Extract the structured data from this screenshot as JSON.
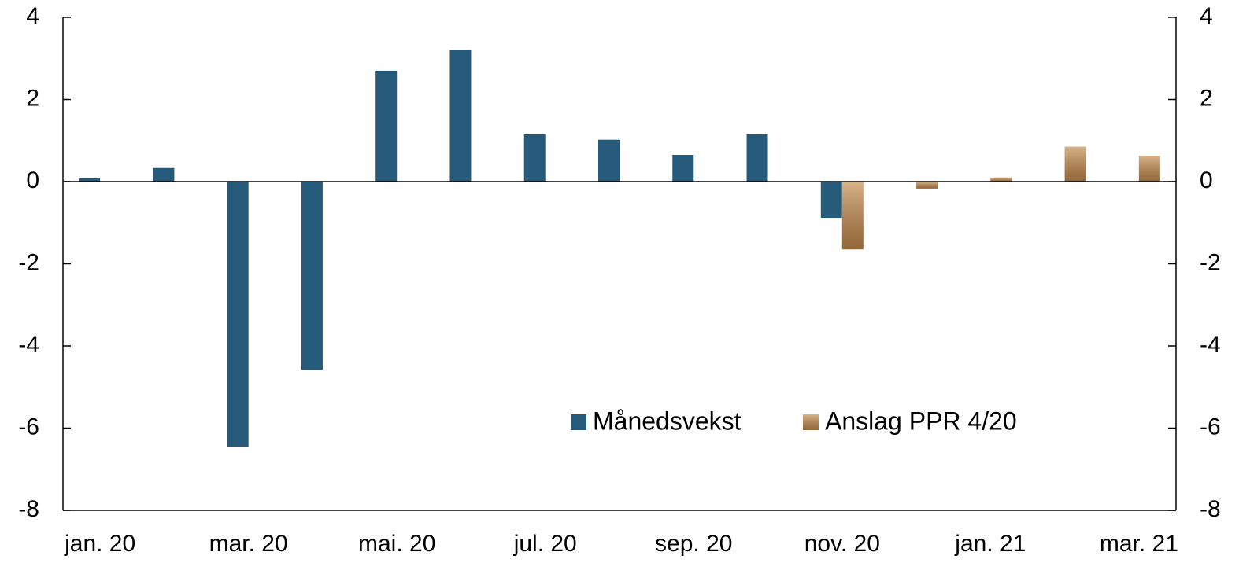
{
  "chart_data": {
    "type": "bar",
    "categories": [
      "jan. 20",
      null,
      "mar. 20",
      null,
      "mai. 20",
      null,
      "jul. 20",
      null,
      "sep. 20",
      null,
      "nov. 20",
      null,
      "jan. 21",
      null,
      "mar. 21"
    ],
    "series": [
      {
        "name": "Månedsvekst",
        "color": "#255a7a",
        "values": [
          0.08,
          0.33,
          -6.45,
          -4.58,
          2.7,
          3.2,
          1.15,
          1.02,
          0.65,
          1.15,
          -0.88,
          null,
          null,
          null,
          null
        ]
      },
      {
        "name": "Anslag PPR 4/20",
        "color": "#c48a4c",
        "values": [
          null,
          null,
          null,
          null,
          null,
          null,
          null,
          null,
          null,
          null,
          -1.65,
          -0.17,
          0.1,
          0.85,
          0.63
        ]
      }
    ],
    "ylim": [
      -8,
      4
    ],
    "yticks": [
      -8,
      -6,
      -4,
      -2,
      0,
      2,
      4
    ],
    "y2lim": [
      -8,
      4
    ],
    "y2ticks": [
      -8,
      -6,
      -4,
      -2,
      0,
      2,
      4
    ]
  }
}
